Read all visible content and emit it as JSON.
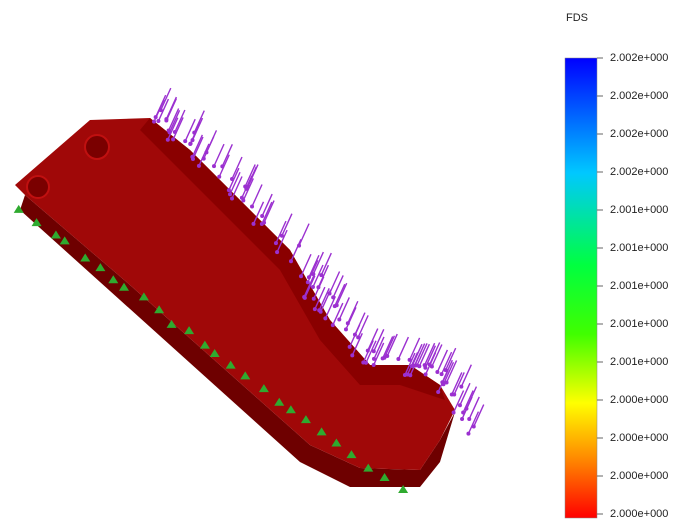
{
  "legend": {
    "title": "FDS",
    "labels": [
      "2.002e+000",
      "2.002e+000",
      "2.002e+000",
      "2.002e+000",
      "2.001e+000",
      "2.001e+000",
      "2.001e+000",
      "2.001e+000",
      "2.001e+000",
      "2.000e+000",
      "2.000e+000",
      "2.000e+000",
      "2.000e+000"
    ]
  }
}
